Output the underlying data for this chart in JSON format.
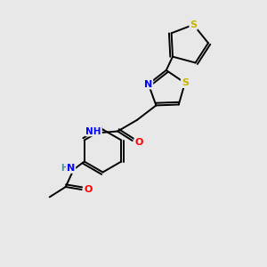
{
  "background_color": "#e8e8e8",
  "bond_color": "#000000",
  "atom_colors": {
    "S": "#c8b400",
    "N": "#0000ff",
    "O": "#ff0000",
    "H_N": "#4a9090",
    "C": "#000000"
  },
  "figsize": [
    3.0,
    3.0
  ],
  "dpi": 100,
  "lw": 1.4,
  "fs": 7.5
}
